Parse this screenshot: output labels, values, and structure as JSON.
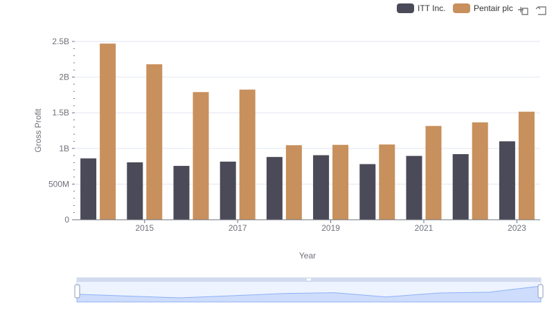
{
  "chart_data": {
    "type": "bar",
    "xlabel": "Year",
    "ylabel": "Gross Profit",
    "ylim": [
      0,
      2500000000
    ],
    "y_ticks": [
      {
        "value": 0,
        "label": "0"
      },
      {
        "value": 500000000,
        "label": "500M"
      },
      {
        "value": 1000000000,
        "label": "1B"
      },
      {
        "value": 1500000000,
        "label": "1.5B"
      },
      {
        "value": 2000000000,
        "label": "2B"
      },
      {
        "value": 2500000000,
        "label": "2.5B"
      }
    ],
    "categories": [
      2014,
      2015,
      2016,
      2017,
      2018,
      2019,
      2020,
      2021,
      2022,
      2023
    ],
    "x_tick_labels": [
      {
        "year": 2015,
        "label": "2015"
      },
      {
        "year": 2017,
        "label": "2017"
      },
      {
        "year": 2019,
        "label": "2019"
      },
      {
        "year": 2021,
        "label": "2021"
      },
      {
        "year": 2023,
        "label": "2023"
      }
    ],
    "series": [
      {
        "name": "ITT Inc.",
        "color": "#4a4a58",
        "values": [
          860000000,
          805000000,
          755000000,
          815000000,
          880000000,
          905000000,
          780000000,
          895000000,
          920000000,
          1100000000
        ]
      },
      {
        "name": "Pentair plc",
        "color": "#c8905c",
        "values": [
          2470000000,
          2180000000,
          1790000000,
          1825000000,
          1045000000,
          1050000000,
          1055000000,
          1315000000,
          1365000000,
          1515000000
        ]
      }
    ],
    "grid": true,
    "legend_position": "top-right"
  },
  "toolbar": {
    "icons": [
      "zoom-icon",
      "zoom-reset-icon"
    ]
  },
  "datazoom": {
    "range_percent": [
      0,
      100
    ],
    "fill_color": "#dbe6fb",
    "line_color": "#8fb0f7"
  }
}
